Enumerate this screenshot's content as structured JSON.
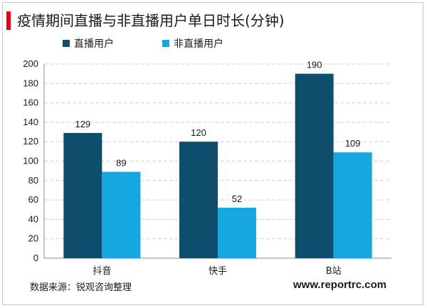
{
  "title": "疫情期间直播与非直播用户单日时长(分钟)",
  "source": "数据来源：锐观咨询整理",
  "website": "www.reportrc.com",
  "chart_data": {
    "type": "bar",
    "title": "疫情期间直播与非直播用户单日时长(分钟)",
    "xlabel": "",
    "ylabel": "",
    "categories": [
      "抖音",
      "快手",
      "B站"
    ],
    "series": [
      {
        "name": "直播用户",
        "values": [
          129,
          120,
          190
        ],
        "color": "#0e4d6b"
      },
      {
        "name": "非直播用户",
        "values": [
          89,
          52,
          109
        ],
        "color": "#17a7df"
      }
    ],
    "ylim": [
      0,
      200
    ],
    "yticks": [
      0,
      20,
      40,
      60,
      80,
      100,
      120,
      140,
      160,
      180,
      200
    ],
    "grid": true,
    "legend_position": "top-left",
    "data_labels": true
  }
}
